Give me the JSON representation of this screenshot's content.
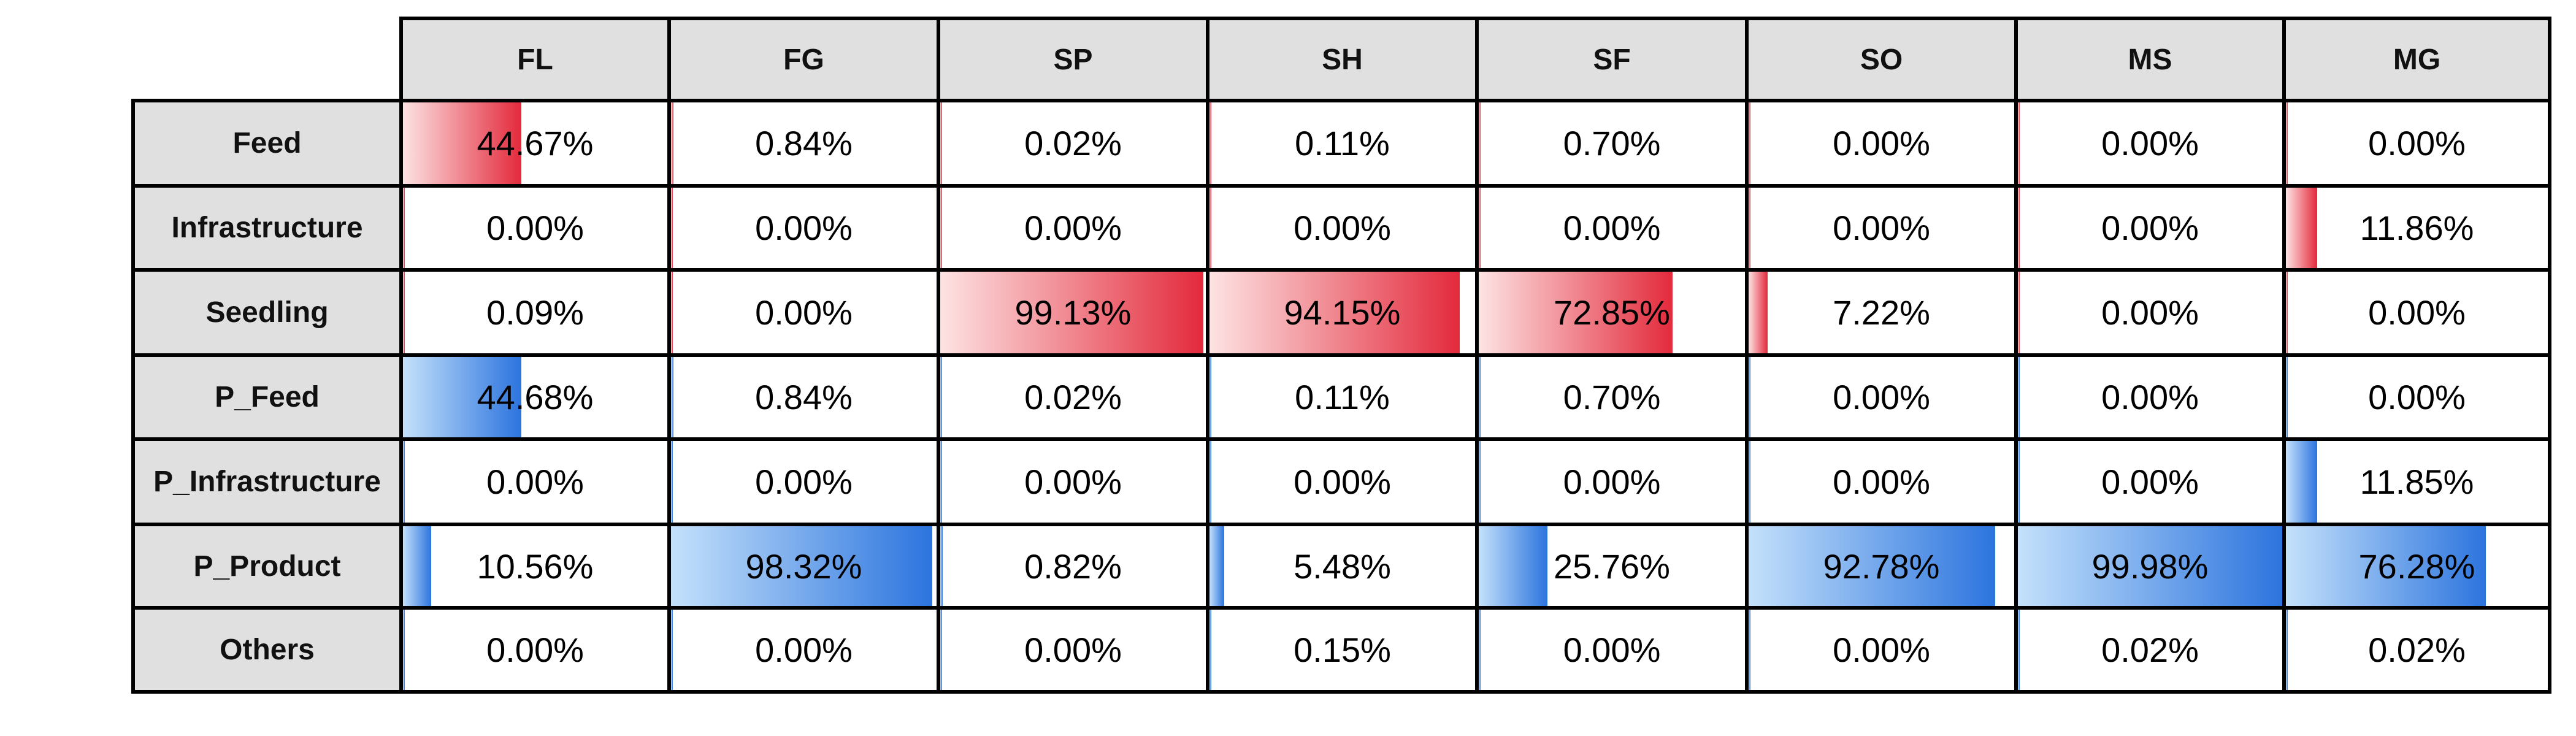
{
  "chart_data": {
    "type": "table",
    "title": "",
    "columns": [
      "FL",
      "FG",
      "SP",
      "SH",
      "SF",
      "SO",
      "MS",
      "MG"
    ],
    "rows": [
      {
        "label": "Feed",
        "color": "red",
        "values": [
          "44.67%",
          "0.84%",
          "0.02%",
          "0.11%",
          "0.70%",
          "0.00%",
          "0.00%",
          "0.00%"
        ]
      },
      {
        "label": "Infrastructure",
        "color": "red",
        "values": [
          "0.00%",
          "0.00%",
          "0.00%",
          "0.00%",
          "0.00%",
          "0.00%",
          "0.00%",
          "11.86%"
        ]
      },
      {
        "label": "Seedling",
        "color": "red",
        "values": [
          "0.09%",
          "0.00%",
          "99.13%",
          "94.15%",
          "72.85%",
          "7.22%",
          "0.00%",
          "0.00%"
        ]
      },
      {
        "label": "P_Feed",
        "color": "blue",
        "values": [
          "44.68%",
          "0.84%",
          "0.02%",
          "0.11%",
          "0.70%",
          "0.00%",
          "0.00%",
          "0.00%"
        ]
      },
      {
        "label": "P_Infrastructure",
        "color": "blue",
        "values": [
          "0.00%",
          "0.00%",
          "0.00%",
          "0.00%",
          "0.00%",
          "0.00%",
          "0.00%",
          "11.85%"
        ]
      },
      {
        "label": "P_Product",
        "color": "blue",
        "values": [
          "10.56%",
          "98.32%",
          "0.82%",
          "5.48%",
          "25.76%",
          "92.78%",
          "99.98%",
          "76.28%"
        ]
      },
      {
        "label": "Others",
        "color": "blue",
        "values": [
          "0.00%",
          "0.00%",
          "0.00%",
          "0.15%",
          "0.00%",
          "0.00%",
          "0.02%",
          "0.02%"
        ]
      }
    ],
    "bar_colors": {
      "red": [
        "#fde3e3",
        "#e32a3c"
      ],
      "blue": [
        "#c4e1fb",
        "#2c74de"
      ]
    },
    "header_background": "#e0e0e0"
  }
}
